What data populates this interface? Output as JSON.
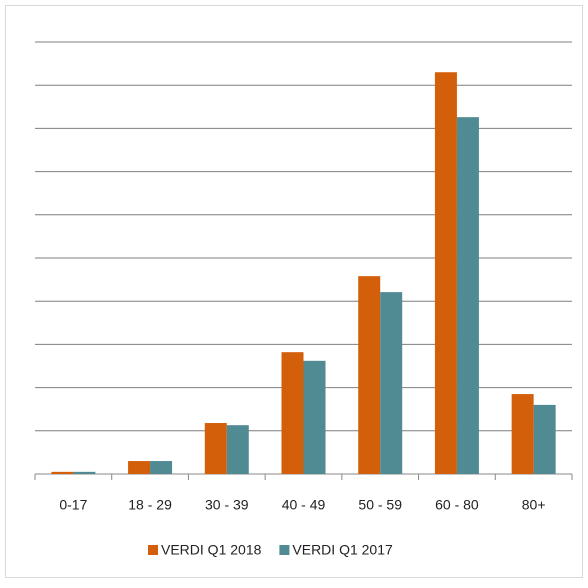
{
  "chart_data": {
    "type": "bar",
    "categories": [
      "0-17",
      "18 - 29",
      "30 - 39",
      "40 - 49",
      "50 - 59",
      "60 - 80",
      "80+"
    ],
    "series": [
      {
        "name": "VERDI Q1 2018",
        "color": "#d45f0b",
        "values": [
          0.05,
          0.3,
          1.18,
          2.82,
          4.58,
          9.3,
          1.85
        ]
      },
      {
        "name": "VERDI Q1 2017",
        "color": "#508a93",
        "values": [
          0.05,
          0.3,
          1.13,
          2.62,
          4.21,
          8.26,
          1.6
        ]
      }
    ],
    "ylim": [
      0,
      10
    ],
    "yticks": [
      0,
      1,
      2,
      3,
      4,
      5,
      6,
      7,
      8,
      9,
      10
    ],
    "grid": true,
    "legend": "bottom"
  }
}
